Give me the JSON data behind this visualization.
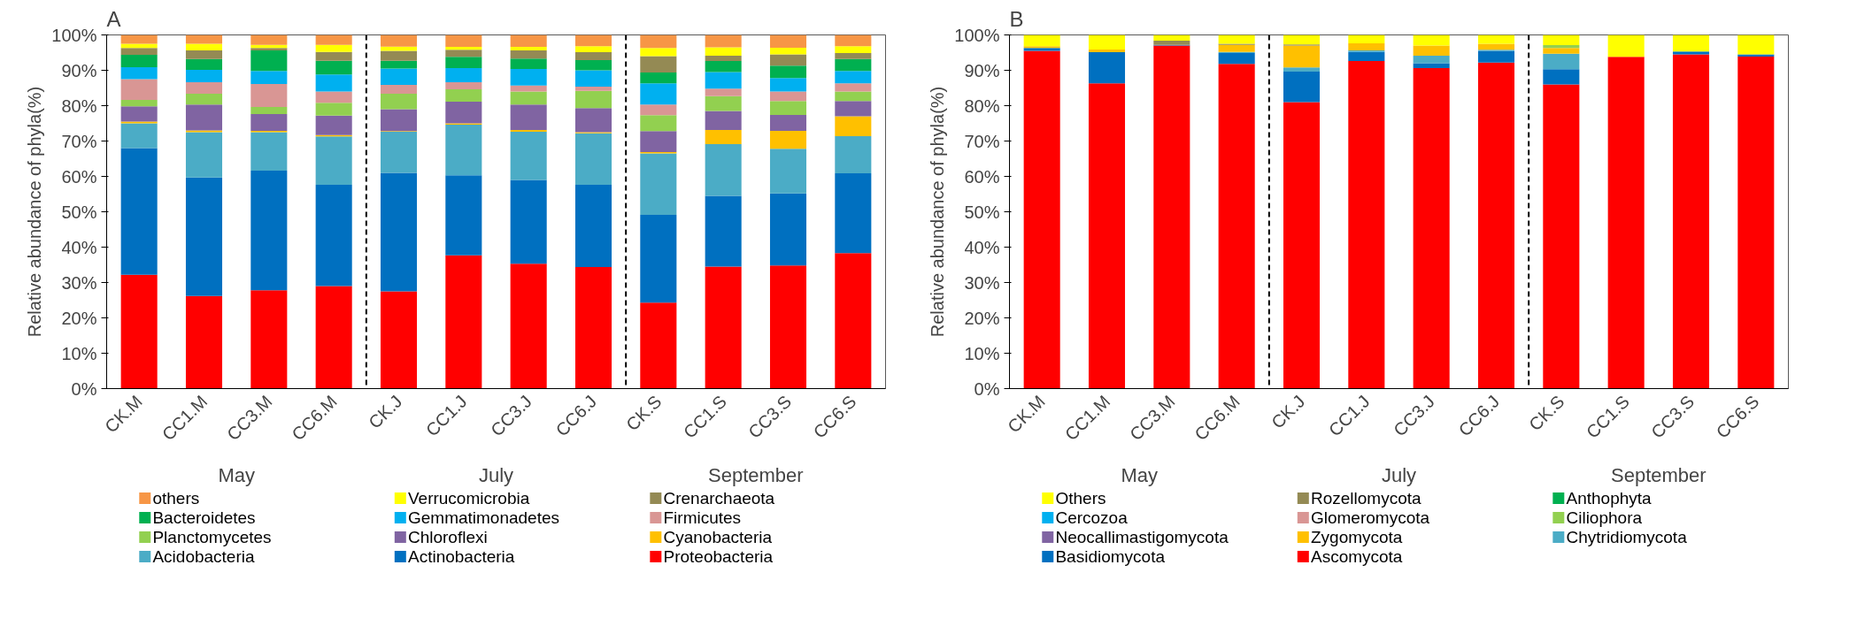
{
  "chart_data": [
    {
      "type": "bar",
      "title": "A",
      "ylabel": "Relative abundance of phyla(%)",
      "stacked": true,
      "legend": "bottom",
      "categories": [
        "CK.M",
        "CC1.M",
        "CC3.M",
        "CC6.M",
        "CK.J",
        "CC1.J",
        "CC3.J",
        "CC6.J",
        "CK.S",
        "CC1.S",
        "CC3.S",
        "CC6.S"
      ],
      "ylim": [
        0,
        100
      ],
      "yticks": [
        {
          "value": 0,
          "label": "0%"
        },
        {
          "value": 10,
          "label": "10%"
        },
        {
          "value": 20,
          "label": "20%"
        },
        {
          "value": 30,
          "label": "30%"
        },
        {
          "value": 40,
          "label": "40%"
        },
        {
          "value": 50,
          "label": "50%"
        },
        {
          "value": 60,
          "label": "60%"
        },
        {
          "value": 70,
          "label": "70%"
        },
        {
          "value": 80,
          "label": "80%"
        },
        {
          "value": 90,
          "label": "90%"
        },
        {
          "value": 100,
          "label": "100%"
        }
      ],
      "annotations": [
        "May",
        "July",
        "September"
      ],
      "series": [
        {
          "name": "Proteobacteria",
          "color": "#ff0000",
          "values": [
            32.2,
            26.2,
            27.8,
            29,
            27.5,
            37.7,
            35.3,
            34.4,
            24.3,
            34.5,
            34.8,
            38.3
          ]
        },
        {
          "name": "Actinobacteria",
          "color": "#0070c0",
          "values": [
            35.8,
            33.5,
            33.8,
            28.6,
            33.5,
            22.6,
            23.7,
            23.2,
            24.8,
            20,
            20.4,
            22.6
          ]
        },
        {
          "name": "Acidobacteria",
          "color": "#4bacc6",
          "values": [
            7,
            12.8,
            10.9,
            13.7,
            11.6,
            14.3,
            13.6,
            14.6,
            17.4,
            14.6,
            12.6,
            10.5
          ]
        },
        {
          "name": "Cyanobacteria",
          "color": "#ffc000",
          "values": [
            0.5,
            0.5,
            0.4,
            0.4,
            0.2,
            0.4,
            0.5,
            0.3,
            0.4,
            4,
            5.1,
            5.6
          ]
        },
        {
          "name": "Chloroflexi",
          "color": "#8064a2",
          "values": [
            4.3,
            7.3,
            4.7,
            5.5,
            6.2,
            6.1,
            7.2,
            6.8,
            5.9,
            5.4,
            4.5,
            4.3
          ]
        },
        {
          "name": "Planctomycetes",
          "color": "#92d050",
          "values": [
            1.8,
            3.1,
            2,
            3.6,
            4.4,
            3.5,
            3.7,
            4.9,
            4.5,
            4.2,
            3.9,
            2.7
          ]
        },
        {
          "name": "Firmicutes",
          "color": "#d99694",
          "values": [
            5.9,
            3.2,
            6.5,
            3.2,
            2.5,
            2,
            1.7,
            1.2,
            3,
            2.1,
            2.7,
            2.3
          ]
        },
        {
          "name": "Gemmatimonadetes",
          "color": "#00b0f0",
          "values": [
            3.4,
            3.5,
            3.7,
            4.8,
            4.6,
            4,
            4.7,
            4.6,
            6,
            4.7,
            3.8,
            3.5
          ]
        },
        {
          "name": "Bacteroidetes",
          "color": "#00b050",
          "values": [
            3.5,
            3.1,
            5.8,
            3.9,
            2.2,
            3.2,
            2.9,
            2.9,
            3.1,
            3.1,
            3.5,
            3.4
          ]
        },
        {
          "name": "Crenarchaeota",
          "color": "#948a54",
          "values": [
            1.9,
            2.4,
            0.7,
            2.5,
            2.8,
            2,
            2.3,
            2.2,
            4.6,
            1.5,
            3.2,
            1.7
          ]
        },
        {
          "name": "Verrucomicrobia",
          "color": "#ffff00",
          "values": [
            1.2,
            1.9,
            0.9,
            2,
            1.2,
            0.8,
            1,
            1.7,
            2.3,
            2.4,
            1.9,
            1.9
          ]
        },
        {
          "name": "others",
          "color": "#f79646",
          "values": [
            2.5,
            2.5,
            2.8,
            2.8,
            3.3,
            3.4,
            3.4,
            3.2,
            3.7,
            3.5,
            3.6,
            3.2
          ]
        }
      ]
    },
    {
      "type": "bar",
      "title": "B",
      "ylabel": "Relative abundance of phyla(%)",
      "stacked": true,
      "legend": "bottom",
      "categories": [
        "CK.M",
        "CC1.M",
        "CC3.M",
        "CC6.M",
        "CK.J",
        "CC1.J",
        "CC3.J",
        "CC6.J",
        "CK.S",
        "CC1.S",
        "CC3.S",
        "CC6.S"
      ],
      "ylim": [
        0,
        100
      ],
      "yticks": [
        {
          "value": 0,
          "label": "0%"
        },
        {
          "value": 10,
          "label": "10%"
        },
        {
          "value": 20,
          "label": "20%"
        },
        {
          "value": 30,
          "label": "30%"
        },
        {
          "value": 40,
          "label": "40%"
        },
        {
          "value": 50,
          "label": "50%"
        },
        {
          "value": 60,
          "label": "60%"
        },
        {
          "value": 70,
          "label": "70%"
        },
        {
          "value": 80,
          "label": "80%"
        },
        {
          "value": 90,
          "label": "90%"
        },
        {
          "value": 100,
          "label": "100%"
        }
      ],
      "annotations": [
        "May",
        "July",
        "September"
      ],
      "series": [
        {
          "name": "Ascomycota",
          "color": "#ff0000",
          "values": [
            95.5,
            86.3,
            97,
            91.8,
            81,
            92.6,
            90.6,
            92.2,
            86,
            93.8,
            94.5,
            93.9
          ]
        },
        {
          "name": "Basidiomycota",
          "color": "#0070c0",
          "values": [
            0.8,
            8.8,
            0.2,
            3.1,
            8.6,
            2.6,
            1.4,
            3.3,
            4.3,
            null,
            0.8,
            0.6
          ]
        },
        {
          "name": "Chytridiomycota",
          "color": "#4bacc6",
          "values": [
            0,
            0,
            0,
            0.3,
            1.2,
            0.4,
            2.1,
            0.3,
            4.4,
            0,
            0,
            0
          ]
        },
        {
          "name": "Zygomycota",
          "color": "#ffc000",
          "values": [
            0.5,
            0.8,
            0,
            2,
            6.2,
            2,
            2.9,
            1.7,
            1.6,
            0,
            0,
            0
          ]
        },
        {
          "name": "Neocallimastigomycota",
          "color": "#8064a2",
          "values": [
            0,
            0,
            0,
            0,
            0,
            0,
            0,
            0,
            0,
            0,
            0,
            0
          ]
        },
        {
          "name": "Ciliophora",
          "color": "#92d050",
          "values": [
            0,
            0,
            0,
            0,
            0,
            0,
            0,
            0,
            0.8,
            0,
            0,
            0
          ]
        },
        {
          "name": "Glomeromycota",
          "color": "#d99694",
          "values": [
            0,
            0,
            0,
            0,
            0,
            0,
            0,
            0,
            0,
            0,
            0,
            0
          ]
        },
        {
          "name": "Cercozoa",
          "color": "#00b0f0",
          "values": [
            0,
            0,
            0,
            0,
            0,
            0,
            0,
            0,
            0,
            0,
            0,
            0
          ]
        },
        {
          "name": "Anthophyta",
          "color": "#00b050",
          "values": [
            0,
            0,
            0,
            0,
            0,
            0,
            0,
            0,
            0,
            0,
            0,
            0
          ]
        },
        {
          "name": "Rozellomycota",
          "color": "#948a54",
          "values": [
            0,
            0,
            1.2,
            0.3,
            0.3,
            0,
            0,
            0,
            0,
            0,
            0,
            0
          ]
        },
        {
          "name": "Others",
          "color": "#ffff00",
          "values": [
            3.2,
            4.1,
            1.6,
            2.5,
            2.7,
            2.4,
            3,
            2.5,
            2.9,
            6.2,
            4.7,
            5.5
          ]
        }
      ]
    }
  ]
}
